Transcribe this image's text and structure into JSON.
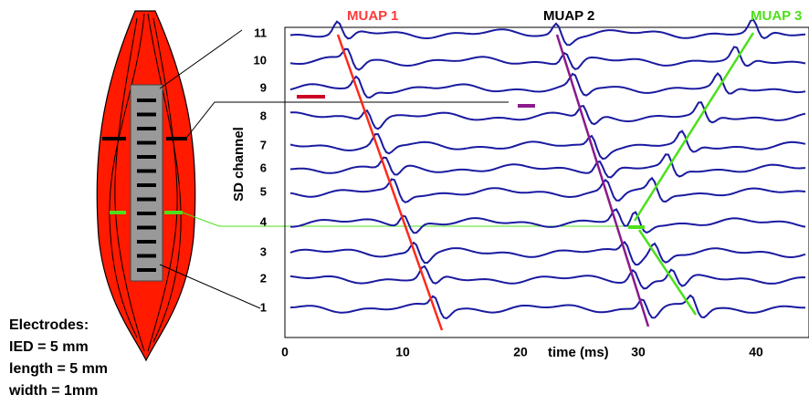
{
  "muap_labels": [
    "MUAP 1",
    "MUAP 2",
    "MUAP 3"
  ],
  "y_axis_title": "SD channel",
  "channels": [
    11,
    10,
    9,
    8,
    7,
    6,
    5,
    4,
    3,
    2,
    1
  ],
  "x_ticks": [
    0,
    10,
    20,
    30,
    40
  ],
  "x_axis_title": "time (ms)",
  "electrodes": [
    "Electrodes:",
    "IED = 5 mm",
    "length = 5 mm",
    "width = 1mm"
  ]
}
